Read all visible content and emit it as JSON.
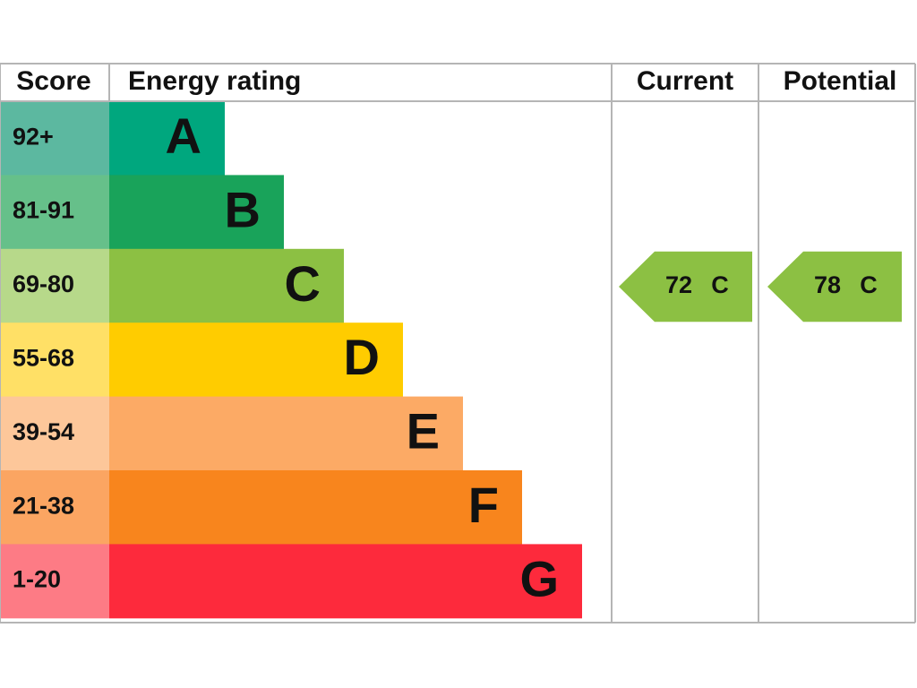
{
  "header": {
    "score": "Score",
    "rating": "Energy rating",
    "current": "Current",
    "potential": "Potential"
  },
  "bands": [
    {
      "score": "92+",
      "letter": "A",
      "color": "#00a77e",
      "score_color": "#5cb8a0"
    },
    {
      "score": "81-91",
      "letter": "B",
      "color": "#19a35a",
      "score_color": "#66c08a"
    },
    {
      "score": "69-80",
      "letter": "C",
      "color": "#8cc043",
      "score_color": "#b7d98a"
    },
    {
      "score": "55-68",
      "letter": "D",
      "color": "#ffcc00",
      "score_color": "#ffe066"
    },
    {
      "score": "39-54",
      "letter": "E",
      "color": "#fcaa65",
      "score_color": "#fdc79a"
    },
    {
      "score": "21-38",
      "letter": "F",
      "color": "#f8851d",
      "score_color": "#fba562"
    },
    {
      "score": "1-20",
      "letter": "G",
      "color": "#fd2a3c",
      "score_color": "#fd7b85"
    }
  ],
  "current": {
    "score": 72,
    "rating": "C"
  },
  "potential": {
    "score": 78,
    "rating": "C"
  }
}
